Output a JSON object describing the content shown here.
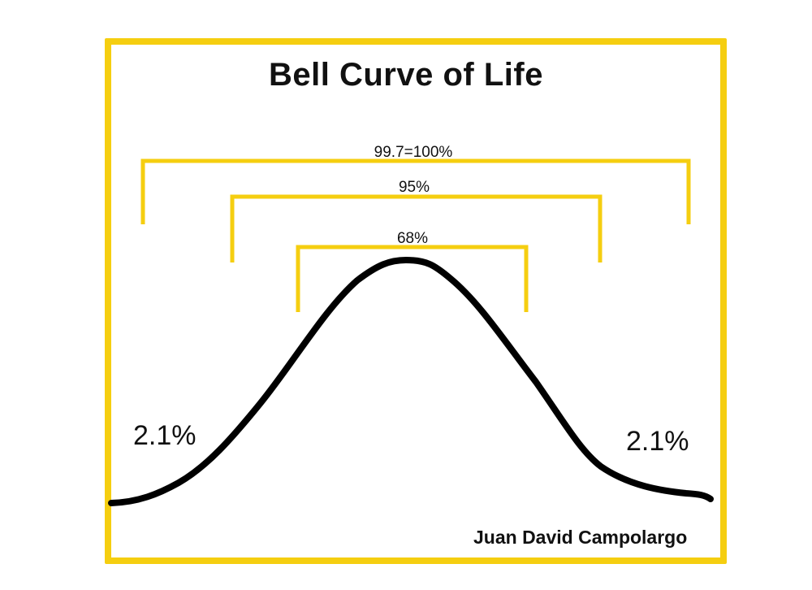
{
  "title": "Bell Curve of Life",
  "brackets": [
    {
      "label": "99.7=100%"
    },
    {
      "label": "95%"
    },
    {
      "label": "68%"
    }
  ],
  "tails": {
    "left": "2.1%",
    "right": "2.1%"
  },
  "author": "Juan David Campolargo",
  "colors": {
    "frame": "#F5CE10",
    "bracket": "#F5CE10",
    "curve": "#000000"
  }
}
